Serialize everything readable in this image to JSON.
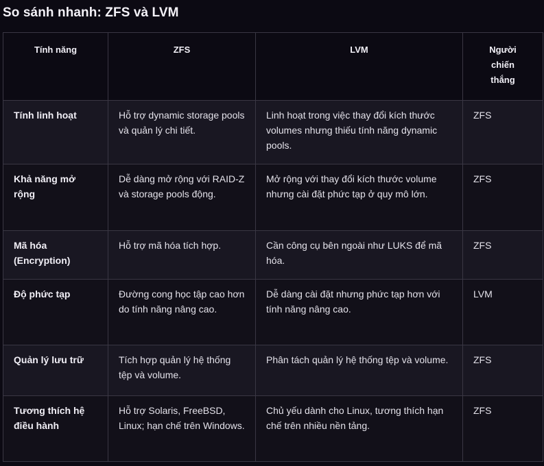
{
  "title": "So sánh nhanh: ZFS và LVM",
  "table": {
    "headers": [
      "Tính năng",
      "ZFS",
      "LVM",
      "Người chiến thắng"
    ],
    "rows": [
      [
        "Tính linh hoạt",
        "Hỗ trợ dynamic storage pools và quản lý chi tiết.",
        "Linh hoạt trong việc thay đổi kích thước volumes nhưng thiếu tính năng dynamic pools.",
        "ZFS"
      ],
      [
        "Khả năng mở rộng",
        "Dễ dàng mở rộng với RAID-Z và storage pools động.",
        "Mở rộng với thay đổi kích thước volume nhưng cài đặt phức tạp ở quy mô lớn.",
        "ZFS"
      ],
      [
        "Mã hóa (Encryption)",
        "Hỗ trợ mã hóa tích hợp.",
        "Cần công cụ bên ngoài như LUKS để mã hóa.",
        "ZFS"
      ],
      [
        "Độ phức tạp",
        "Đường cong học tập cao hơn do tính năng nâng cao.",
        "Dễ dàng cài đặt nhưng phức tạp hơn với tính năng nâng cao.",
        "LVM"
      ],
      [
        "Quản lý lưu trữ",
        "Tích hợp quản lý hệ thống tệp và volume.",
        "Phân tách quản lý hệ thống tệp và volume.",
        "ZFS"
      ],
      [
        "Tương thích hệ điều hành",
        "Hỗ trợ Solaris, FreeBSD, Linux; hạn chế trên Windows.",
        "Chủ yếu dành cho Linux, tương thích hạn chế trên nhiều nền tảng.",
        "ZFS"
      ]
    ]
  }
}
